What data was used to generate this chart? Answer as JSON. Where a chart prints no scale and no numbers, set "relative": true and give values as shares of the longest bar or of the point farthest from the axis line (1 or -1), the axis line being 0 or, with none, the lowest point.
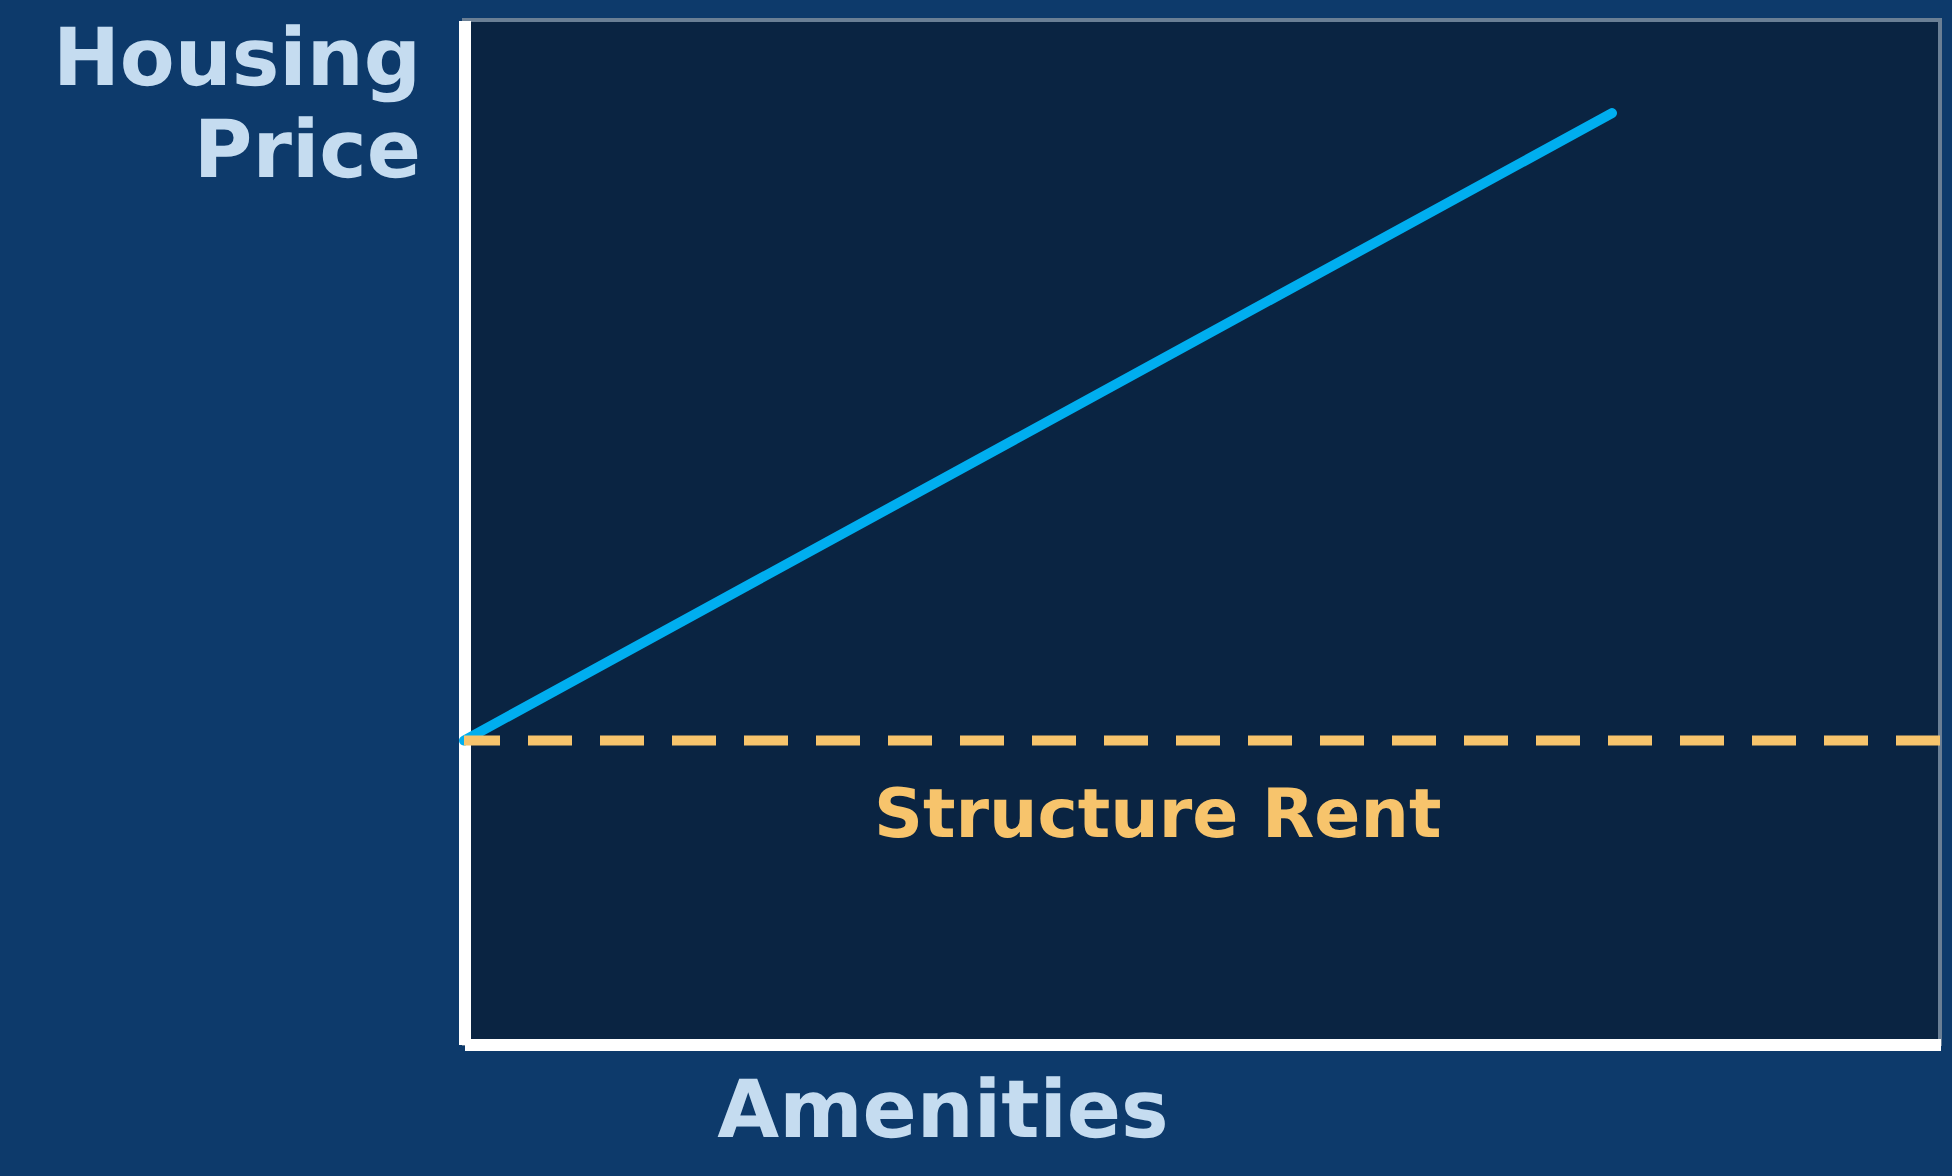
{
  "chart_data": {
    "type": "line",
    "relative": true,
    "xlabel": "Amenities",
    "ylabel": "Housing\nPrice",
    "categories": [
      null,
      null,
      null,
      null,
      null,
      null,
      null,
      null,
      null,
      null
    ],
    "series": [
      {
        "color": "#00aeef",
        "values": [
          0.326,
          null,
          null,
          null,
          null,
          null,
          null,
          1,
          null,
          null
        ]
      }
    ],
    "ref_lines": [
      {
        "axis": "y",
        "value": 0.326,
        "label": "Structure Rent",
        "color": "#f7c46c",
        "line_style": "dashed"
      }
    ],
    "tick_labels": false,
    "grid": false,
    "marker": "none",
    "line_style": "solid"
  }
}
